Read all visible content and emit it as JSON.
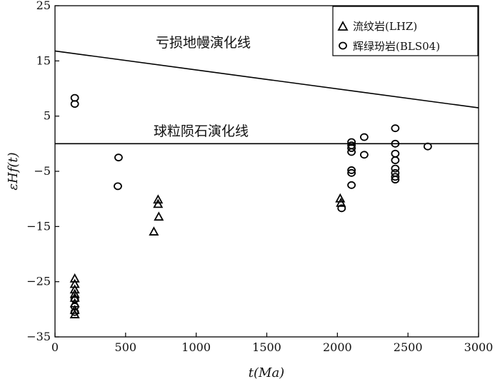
{
  "chart_data": {
    "type": "scatter",
    "xlabel": "t(Ma)",
    "ylabel": "εHf(t)",
    "xlim": [
      0,
      3000
    ],
    "ylim": [
      -35,
      25
    ],
    "x_ticks": [
      0,
      500,
      1000,
      1500,
      2000,
      2500,
      3000
    ],
    "y_ticks": [
      25,
      15,
      5,
      -5,
      -15,
      -25,
      -35
    ],
    "grid": false,
    "legend": {
      "placement": "top-right",
      "entries": [
        "流纹岩(LHZ)",
        "辉绿玢岩(BLS04)"
      ]
    },
    "series": [
      {
        "name": "流纹岩(LHZ)",
        "marker": "triangle",
        "points": [
          {
            "x": 2020,
            "y": -10.0
          },
          {
            "x": 2025,
            "y": -10.8
          },
          {
            "x": 700,
            "y": -16.0
          },
          {
            "x": 730,
            "y": -10.2
          },
          {
            "x": 730,
            "y": -11.0
          },
          {
            "x": 735,
            "y": -13.3
          },
          {
            "x": 140,
            "y": -24.5
          },
          {
            "x": 140,
            "y": -25.5
          },
          {
            "x": 140,
            "y": -26.5
          },
          {
            "x": 140,
            "y": -27.3
          },
          {
            "x": 140,
            "y": -28.0
          },
          {
            "x": 140,
            "y": -29.0
          },
          {
            "x": 140,
            "y": -30.2
          },
          {
            "x": 140,
            "y": -31.0
          }
        ]
      },
      {
        "name": "辉绿玢岩(BLS04)",
        "marker": "circle",
        "points": [
          {
            "x": 140,
            "y": 8.3
          },
          {
            "x": 140,
            "y": 7.2
          },
          {
            "x": 140,
            "y": -28.2
          },
          {
            "x": 140,
            "y": -29.5
          },
          {
            "x": 140,
            "y": -30.5
          },
          {
            "x": 450,
            "y": -2.5
          },
          {
            "x": 445,
            "y": -7.7
          },
          {
            "x": 2100,
            "y": 0.3
          },
          {
            "x": 2100,
            "y": -0.3
          },
          {
            "x": 2100,
            "y": -0.8
          },
          {
            "x": 2100,
            "y": -1.5
          },
          {
            "x": 2100,
            "y": -4.8
          },
          {
            "x": 2100,
            "y": -5.3
          },
          {
            "x": 2100,
            "y": -7.5
          },
          {
            "x": 2030,
            "y": -11.7
          },
          {
            "x": 2190,
            "y": 1.2
          },
          {
            "x": 2190,
            "y": -2.0
          },
          {
            "x": 2410,
            "y": 2.8
          },
          {
            "x": 2410,
            "y": 0.0
          },
          {
            "x": 2410,
            "y": -1.8
          },
          {
            "x": 2410,
            "y": -3.0
          },
          {
            "x": 2410,
            "y": -4.5
          },
          {
            "x": 2410,
            "y": -5.3
          },
          {
            "x": 2410,
            "y": -6.0
          },
          {
            "x": 2410,
            "y": -6.5
          },
          {
            "x": 2640,
            "y": -0.5
          }
        ]
      }
    ],
    "reference_lines": [
      {
        "label": "亏损地幔演化线",
        "x": [
          0,
          3000
        ],
        "y": [
          16.8,
          6.5
        ]
      },
      {
        "label": "球粒陨石演化线",
        "x": [
          0,
          3000
        ],
        "y": [
          0,
          0
        ]
      }
    ]
  }
}
